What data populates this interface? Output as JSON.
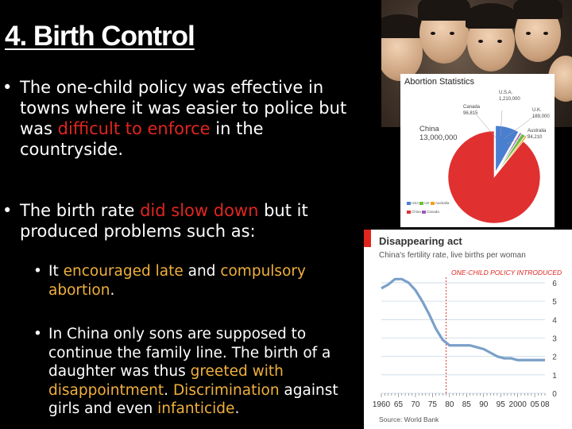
{
  "slide": {
    "title": "4. Birth Control",
    "bullet1": {
      "line1": "The one-child policy was effective in",
      "line2": "towns where it was easier to police but",
      "line3a": "was ",
      "line3b": "difficult to enforce",
      "line3c": " in the",
      "line4": "countryside."
    },
    "bullet2": {
      "line1a": "The birth rate ",
      "line1b": "did slow down",
      "line1c": " but it",
      "line2": "produced problems such as:"
    },
    "sub1": {
      "a": "It ",
      "b": "encouraged late",
      "c": " and ",
      "d": "compulsory",
      "e": "abortion",
      "f": "."
    },
    "sub2": {
      "line1": "In China only sons are supposed to",
      "line2": "continue the family line. The birth of a",
      "line3a": "daughter was thus ",
      "line3b": "greeted with",
      "line4a": "disappointment",
      "line4b": ". ",
      "line4c": "Discrimination",
      "line4d": " against",
      "line5a": "girls and even ",
      "line5b": "infanticide",
      "line5c": "."
    },
    "bullet_char": "•",
    "colors": {
      "red": "#e0251f",
      "gold": "#f0b03c"
    }
  },
  "pie_chart": {
    "title": "Abortion Statistics",
    "labels": {
      "usa_name": "U.S.A.",
      "usa_value": "1,210,000",
      "canada_name": "Canada",
      "canada_value": "96,815",
      "uk_name": "U.K.",
      "uk_value": "189,000",
      "australia_name": "Australia",
      "australia_value": "84,210",
      "china_name": "China",
      "china_value": "13,000,000"
    },
    "legend": [
      "USA",
      "UK",
      "Australia",
      "China",
      "Canada"
    ]
  },
  "line_chart": {
    "title": "Disappearing act",
    "subtitle": "China's fertility rate, live births per woman",
    "annotation": "ONE-CHILD POLICY INTRODUCED",
    "source": "Source: World Bank"
  },
  "chart_data": [
    {
      "type": "pie",
      "title": "Abortion Statistics",
      "categories": [
        "U.S.A.",
        "Canada",
        "U.K.",
        "Australia",
        "China"
      ],
      "values": [
        1210000,
        96815,
        189000,
        84210,
        13000000
      ],
      "colors": [
        "#4a7fd0",
        "#9b59b6",
        "#6abf3a",
        "#f0a020",
        "#e03030"
      ],
      "legend": [
        "USA",
        "UK",
        "Australia",
        "China",
        "Canada"
      ]
    },
    {
      "type": "line",
      "title": "Disappearing act",
      "subtitle": "China's fertility rate, live births per woman",
      "x": [
        1960,
        1962,
        1964,
        1966,
        1968,
        1970,
        1972,
        1974,
        1976,
        1978,
        1980,
        1982,
        1984,
        1986,
        1988,
        1990,
        1992,
        1994,
        1996,
        1998,
        2000,
        2002,
        2004,
        2006,
        2008
      ],
      "y": [
        5.7,
        5.9,
        6.2,
        6.2,
        6.0,
        5.6,
        5.0,
        4.3,
        3.5,
        2.9,
        2.6,
        2.6,
        2.6,
        2.6,
        2.5,
        2.4,
        2.2,
        2.0,
        1.9,
        1.9,
        1.8,
        1.8,
        1.8,
        1.8,
        1.8
      ],
      "xticks": [
        "1960",
        "65",
        "70",
        "75",
        "80",
        "85",
        "90",
        "95",
        "2000",
        "05",
        "08"
      ],
      "yticks": [
        "0",
        "1",
        "2",
        "3",
        "4",
        "5",
        "6"
      ],
      "ylim": [
        0,
        6.5
      ],
      "xlim": [
        1960,
        2008
      ],
      "annotation": {
        "text": "ONE-CHILD POLICY INTRODUCED",
        "x": 1979
      },
      "grid": true,
      "line_color": "#7aa0c8"
    }
  ]
}
